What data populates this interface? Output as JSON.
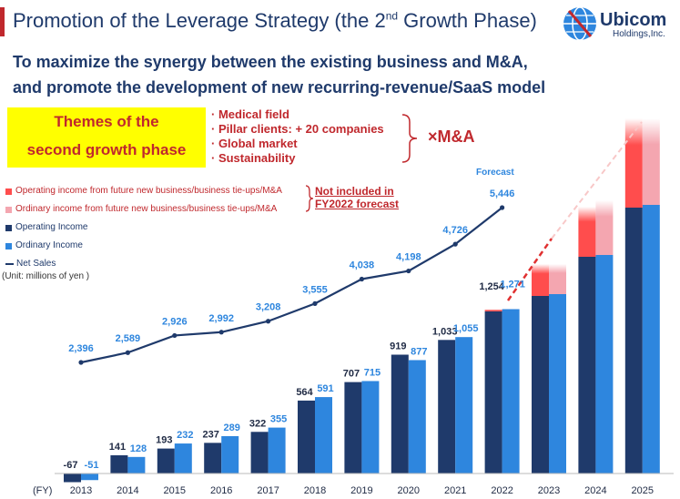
{
  "title": {
    "prefix": "Promotion of the Leverage Strategy (the 2",
    "sup": "nd",
    "suffix": " Growth Phase)"
  },
  "logo": {
    "name": "Ubicom",
    "sub": "Holdings,Inc."
  },
  "headline": {
    "line1": "To maximize the synergy between the existing business and M&A,",
    "line2": "and promote the development of new recurring-revenue/SaaS model"
  },
  "themes": {
    "line1": "Themes of the",
    "line2": "second growth phase"
  },
  "bullets": [
    "· Medical field",
    "· Pillar clients: + 20 companies",
    "· Global market",
    "· Sustainability"
  ],
  "ma_label": "×M&A",
  "legend": [
    {
      "label": "Operating income from future new business/business tie-ups/M&A",
      "color": "#ff4d4d",
      "kind": "box",
      "text_color": "#c0282d"
    },
    {
      "label": "Ordinary income from future new business/business tie-ups/M&A",
      "color": "#f4a6b0",
      "kind": "box",
      "text_color": "#c0282d"
    },
    {
      "label": "Operating Income",
      "color": "#1f3a6b",
      "kind": "box",
      "text_color": "#1f3a6b"
    },
    {
      "label": "Ordinary Income",
      "color": "#2e86de",
      "kind": "box",
      "text_color": "#1f3a6b"
    },
    {
      "label": "Net Sales",
      "color": "#1f3a6b",
      "kind": "line",
      "text_color": "#1f3a6b"
    }
  ],
  "note": {
    "line1": "Not included in",
    "line2": "FY2022 forecast"
  },
  "unit": "(Unit: millions of yen )",
  "forecast_label": "Forecast",
  "chart_data": {
    "type": "bar",
    "x_axis_label": "(FY)",
    "categories": [
      "2013",
      "2014",
      "2015",
      "2016",
      "2017",
      "2018",
      "2019",
      "2020",
      "2021",
      "2022",
      "2023",
      "2024",
      "2025"
    ],
    "series": [
      {
        "name": "Operating Income",
        "color": "#1f3a6b",
        "values": [
          -67,
          141,
          193,
          237,
          322,
          564,
          707,
          919,
          1033,
          1254,
          null,
          null,
          null
        ],
        "labels": [
          "-67",
          "141",
          "193",
          "237",
          "322",
          "564",
          "707",
          "919",
          "1,033",
          "1,254",
          "",
          "",
          ""
        ]
      },
      {
        "name": "Ordinary Income",
        "color": "#2e86de",
        "values": [
          -51,
          128,
          232,
          289,
          355,
          591,
          715,
          877,
          1055,
          1271,
          null,
          null,
          null
        ],
        "labels": [
          "-51",
          "128",
          "232",
          "289",
          "355",
          "591",
          "715",
          "877",
          "1,055",
          "1,271",
          "",
          "",
          ""
        ]
      },
      {
        "name": "Net Sales",
        "type": "line",
        "color": "#1f3a6b",
        "values": [
          2396,
          2589,
          2926,
          2992,
          3208,
          3555,
          4038,
          4198,
          4726,
          5446,
          null,
          null,
          null
        ],
        "labels": [
          "2,396",
          "2,589",
          "2,926",
          "2,992",
          "3,208",
          "3,555",
          "4,038",
          "4,198",
          "4,726",
          "5,446",
          "",
          "",
          ""
        ]
      }
    ],
    "future_colors": {
      "operating_top": "#ff4d4d",
      "ordinary_top": "#f4a6b0"
    }
  }
}
